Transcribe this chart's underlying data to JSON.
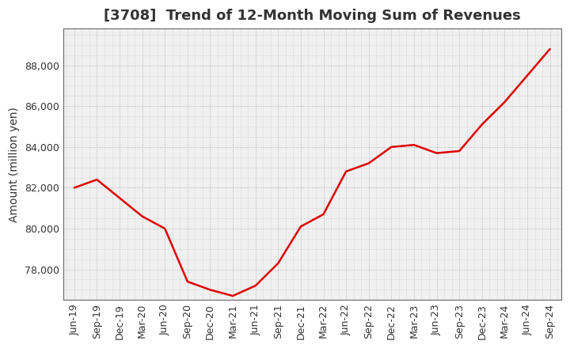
{
  "title": "[3708]  Trend of 12-Month Moving Sum of Revenues",
  "ylabel": "Amount (million yen)",
  "line_color": "#dd0000",
  "line_width": 1.8,
  "background_color": "#ffffff",
  "plot_bg_color": "#f0f0f0",
  "grid_color": "#888888",
  "title_color": "#333333",
  "x_labels": [
    "Jun-19",
    "Sep-19",
    "Dec-19",
    "Mar-20",
    "Jun-20",
    "Sep-20",
    "Dec-20",
    "Mar-21",
    "Jun-21",
    "Sep-21",
    "Dec-21",
    "Mar-22",
    "Jun-22",
    "Sep-22",
    "Dec-22",
    "Mar-23",
    "Jun-23",
    "Sep-23",
    "Dec-23",
    "Mar-24",
    "Jun-24",
    "Sep-24"
  ],
  "values": [
    82000,
    82400,
    81500,
    80600,
    80000,
    77400,
    77000,
    76700,
    77200,
    78300,
    80100,
    80700,
    82800,
    83200,
    84000,
    84100,
    83700,
    83800,
    85100,
    86200,
    87500,
    88800
  ],
  "yticks": [
    78000,
    80000,
    82000,
    84000,
    86000,
    88000
  ],
  "ylim": [
    76500,
    89800
  ],
  "title_fontsize": 13,
  "label_fontsize": 10,
  "tick_fontsize": 9
}
